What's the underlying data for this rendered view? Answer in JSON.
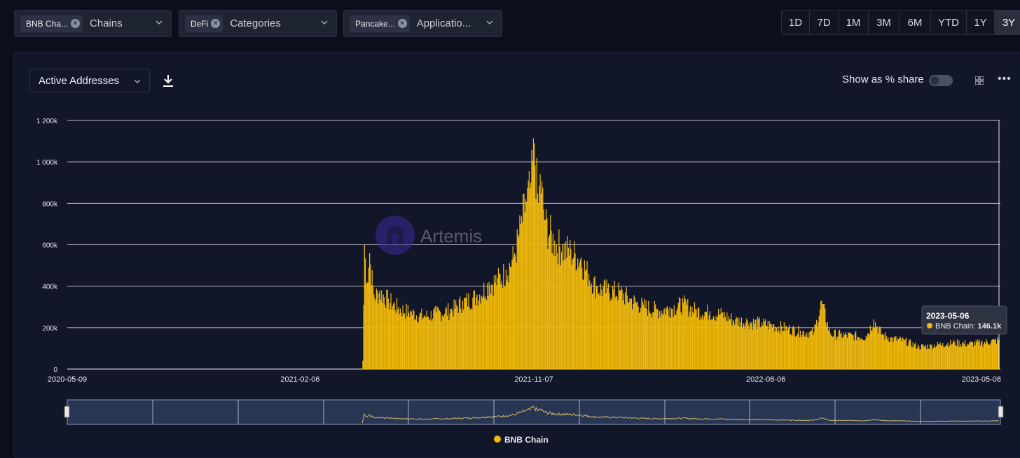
{
  "filters": [
    {
      "chip": "BNB Cha...",
      "label": "Chains"
    },
    {
      "chip": "DeFi",
      "label": "Categories"
    },
    {
      "chip": "Pancake...",
      "label": "Applicatio..."
    }
  ],
  "ranges": [
    "1D",
    "7D",
    "1M",
    "3M",
    "6M",
    "YTD",
    "1Y",
    "3Y"
  ],
  "active_range": "3Y",
  "metric_select": "Active Addresses",
  "share_label": "Show as % share",
  "watermark": "Artemis",
  "tooltip": {
    "date": "2023-05-06",
    "series": "BNB Chain:",
    "value": "146.1k"
  },
  "colors": {
    "bar": "#f0b90b",
    "background": "#121629",
    "grid": "#d9dce6",
    "tooltip_bg": "#2e3342"
  },
  "chart_data": {
    "type": "bar",
    "title": "",
    "xlabel": "",
    "ylabel": "",
    "x_start": "2020-05-09",
    "x_end": "2023-05-08",
    "ylim": [
      0,
      1200000
    ],
    "y_ticks": [
      {
        "value": 0,
        "label": "0"
      },
      {
        "value": 200000,
        "label": "200k"
      },
      {
        "value": 400000,
        "label": "400k"
      },
      {
        "value": 600000,
        "label": "600k"
      },
      {
        "value": 800000,
        "label": "800k"
      },
      {
        "value": 1000000,
        "label": "1 000k"
      },
      {
        "value": 1200000,
        "label": "1 200k"
      }
    ],
    "x_ticks": [
      "2020-05-09",
      "2021-02-06",
      "2021-11-07",
      "2022-08-06",
      "2023-05-08"
    ],
    "legend": {
      "position": "bottom",
      "entries": [
        "BNB Chain"
      ]
    },
    "series": [
      {
        "name": "BNB Chain",
        "points": [
          [
            "2021-04-20",
            40000
          ],
          [
            "2021-04-22",
            600000
          ],
          [
            "2021-04-25",
            420000
          ],
          [
            "2021-04-28",
            560000
          ],
          [
            "2021-05-03",
            360000
          ],
          [
            "2021-05-10",
            380000
          ],
          [
            "2021-05-20",
            340000
          ],
          [
            "2021-06-01",
            300000
          ],
          [
            "2021-06-15",
            280000
          ],
          [
            "2021-07-01",
            260000
          ],
          [
            "2021-07-15",
            275000
          ],
          [
            "2021-08-01",
            290000
          ],
          [
            "2021-08-15",
            330000
          ],
          [
            "2021-09-01",
            360000
          ],
          [
            "2021-09-15",
            420000
          ],
          [
            "2021-09-25",
            440000
          ],
          [
            "2021-10-05",
            480000
          ],
          [
            "2021-10-15",
            560000
          ],
          [
            "2021-10-22",
            700000
          ],
          [
            "2021-10-28",
            820000
          ],
          [
            "2021-11-03",
            900000
          ],
          [
            "2021-11-07",
            1090000
          ],
          [
            "2021-11-12",
            800000
          ],
          [
            "2021-11-14",
            940000
          ],
          [
            "2021-11-20",
            720000
          ],
          [
            "2021-12-01",
            620000
          ],
          [
            "2021-12-10",
            600000
          ],
          [
            "2021-12-20",
            580000
          ],
          [
            "2022-01-01",
            540000
          ],
          [
            "2022-01-10",
            460000
          ],
          [
            "2022-01-20",
            400000
          ],
          [
            "2022-02-01",
            390000
          ],
          [
            "2022-02-15",
            380000
          ],
          [
            "2022-03-01",
            340000
          ],
          [
            "2022-03-15",
            310000
          ],
          [
            "2022-04-01",
            290000
          ],
          [
            "2022-04-15",
            300000
          ],
          [
            "2022-05-01",
            320000
          ],
          [
            "2022-05-15",
            290000
          ],
          [
            "2022-06-01",
            280000
          ],
          [
            "2022-06-15",
            270000
          ],
          [
            "2022-07-01",
            240000
          ],
          [
            "2022-07-15",
            235000
          ],
          [
            "2022-08-01",
            225000
          ],
          [
            "2022-08-15",
            215000
          ],
          [
            "2022-09-01",
            200000
          ],
          [
            "2022-09-15",
            185000
          ],
          [
            "2022-10-01",
            180000
          ],
          [
            "2022-10-10",
            330000
          ],
          [
            "2022-10-20",
            175000
          ],
          [
            "2022-11-01",
            170000
          ],
          [
            "2022-11-15",
            165000
          ],
          [
            "2022-12-01",
            160000
          ],
          [
            "2022-12-10",
            240000
          ],
          [
            "2022-12-20",
            170000
          ],
          [
            "2023-01-01",
            150000
          ],
          [
            "2023-01-15",
            140000
          ],
          [
            "2023-02-01",
            110000
          ],
          [
            "2023-02-15",
            115000
          ],
          [
            "2023-03-01",
            125000
          ],
          [
            "2023-03-15",
            130000
          ],
          [
            "2023-04-01",
            125000
          ],
          [
            "2023-04-15",
            130000
          ],
          [
            "2023-05-01",
            140000
          ],
          [
            "2023-05-06",
            146100
          ]
        ]
      }
    ]
  }
}
